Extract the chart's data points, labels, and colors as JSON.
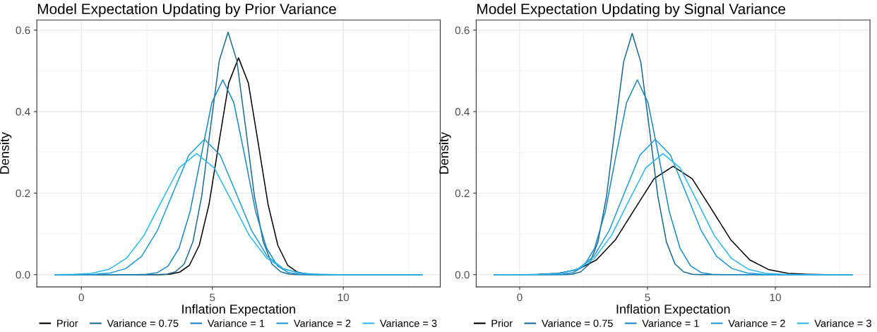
{
  "chart_data": [
    {
      "type": "line",
      "title": "Model Expectation Updating by Prior Variance",
      "xlabel": "Inflation Expectation",
      "ylabel": "Density",
      "xlim": [
        -1.7,
        13.7
      ],
      "ylim": [
        -0.03,
        0.625
      ],
      "xticks": [
        0,
        5,
        10
      ],
      "yticks": [
        {
          "value": 0,
          "label": "0.0"
        },
        {
          "value": 0.2,
          "label": "0.2"
        },
        {
          "value": 0.4,
          "label": "0.4"
        },
        {
          "value": 0.6,
          "label": "0.6"
        }
      ],
      "grid": true,
      "legend": "bottom",
      "marker": "none",
      "line_style": "solid",
      "series": [
        {
          "name": "Prior",
          "color": "#000000",
          "x": [
            -1,
            3,
            3.375,
            3.75,
            4.125,
            4.5,
            4.875,
            5.25,
            5.625,
            6,
            6.375,
            6.75,
            7.125,
            7.5,
            7.875,
            8.25,
            8.625,
            9,
            13
          ],
          "values": [
            0,
            0,
            0.001,
            0.006,
            0.023,
            0.072,
            0.173,
            0.323,
            0.47,
            0.532,
            0.47,
            0.323,
            0.173,
            0.072,
            0.023,
            0.006,
            0.001,
            0,
            0
          ]
        },
        {
          "name": "Variance = 0.75",
          "color": "#1b6a94",
          "x": [
            -1,
            2.92,
            3.255,
            3.59,
            3.925,
            4.26,
            4.595,
            4.93,
            5.265,
            5.6,
            5.935,
            6.27,
            6.605,
            6.94,
            7.275,
            7.61,
            7.945,
            8.28,
            13
          ],
          "values": [
            0,
            0,
            0.001,
            0.007,
            0.026,
            0.081,
            0.193,
            0.361,
            0.525,
            0.595,
            0.525,
            0.361,
            0.193,
            0.081,
            0.026,
            0.007,
            0.001,
            0,
            0
          ]
        },
        {
          "name": "Variance = 1",
          "color": "#1a87c4",
          "x": [
            -1,
            2.06,
            2.48,
            2.9,
            3.31,
            3.73,
            4.15,
            4.57,
            4.98,
            5.4,
            5.82,
            6.24,
            6.65,
            7.07,
            7.49,
            7.9,
            8.32,
            8.74,
            13
          ],
          "values": [
            0,
            0,
            0.001,
            0.005,
            0.021,
            0.065,
            0.155,
            0.29,
            0.422,
            0.478,
            0.422,
            0.29,
            0.155,
            0.065,
            0.021,
            0.005,
            0.001,
            0,
            0
          ]
        },
        {
          "name": "Variance = 2",
          "color": "#1f9ad6",
          "x": [
            -1,
            -0.1,
            0.5,
            1.1,
            1.7,
            2.3,
            2.9,
            3.5,
            4.1,
            4.7,
            5.3,
            5.9,
            6.5,
            7.1,
            7.7,
            8.3,
            8.9,
            9.5,
            13
          ],
          "values": [
            0,
            0,
            0.001,
            0.004,
            0.015,
            0.045,
            0.108,
            0.201,
            0.293,
            0.332,
            0.293,
            0.201,
            0.108,
            0.045,
            0.015,
            0.004,
            0.001,
            0,
            0
          ]
        },
        {
          "name": "Variance = 3",
          "color": "#2ab8f0",
          "x": [
            -1,
            -0.96,
            -0.29,
            0.38,
            1.05,
            1.72,
            2.39,
            3.06,
            3.73,
            4.4,
            5.07,
            5.74,
            6.41,
            7.08,
            7.75,
            8.42,
            9.09,
            9.76,
            13
          ],
          "values": [
            0,
            0,
            0.001,
            0.003,
            0.013,
            0.04,
            0.096,
            0.18,
            0.262,
            0.297,
            0.262,
            0.18,
            0.096,
            0.04,
            0.013,
            0.003,
            0.001,
            0,
            0
          ]
        }
      ]
    },
    {
      "type": "line",
      "title": "Model Expectation Updating by Signal Variance",
      "xlabel": "Inflation Expectation",
      "ylabel": "Density",
      "xlim": [
        -1.7,
        13.7
      ],
      "ylim": [
        -0.03,
        0.625
      ],
      "xticks": [
        0,
        5,
        10
      ],
      "yticks": [
        {
          "value": 0,
          "label": "0.0"
        },
        {
          "value": 0.2,
          "label": "0.2"
        },
        {
          "value": 0.4,
          "label": "0.4"
        },
        {
          "value": 0.6,
          "label": "0.6"
        }
      ],
      "grid": true,
      "legend": "bottom",
      "marker": "none",
      "line_style": "solid",
      "series": [
        {
          "name": "Prior",
          "color": "#000000",
          "x": [
            0.75,
            1.5,
            2.25,
            3,
            3.75,
            4.5,
            5.25,
            6,
            6.75,
            7.5,
            8.25,
            9,
            9.75,
            10.5,
            11.25,
            12,
            13
          ],
          "values": [
            0.001,
            0.003,
            0.012,
            0.036,
            0.086,
            0.161,
            0.235,
            0.266,
            0.235,
            0.161,
            0.086,
            0.036,
            0.012,
            0.003,
            0.001,
            0,
            0
          ]
        },
        {
          "name": "Variance = 0.75",
          "color": "#1b6a94",
          "x": [
            -1,
            1.72,
            2.055,
            2.39,
            2.725,
            3.06,
            3.395,
            3.73,
            4.065,
            4.4,
            4.735,
            5.07,
            5.405,
            5.74,
            6.075,
            6.41,
            6.745,
            7.08,
            13
          ],
          "values": [
            0,
            0,
            0.001,
            0.007,
            0.026,
            0.08,
            0.192,
            0.359,
            0.522,
            0.592,
            0.522,
            0.359,
            0.192,
            0.08,
            0.026,
            0.007,
            0.001,
            0,
            0
          ]
        },
        {
          "name": "Variance = 1",
          "color": "#1a87c4",
          "x": [
            -1,
            1.26,
            1.68,
            2.1,
            2.51,
            2.93,
            3.35,
            3.76,
            4.18,
            4.6,
            5.02,
            5.44,
            5.85,
            6.27,
            6.69,
            7.1,
            7.52,
            7.94,
            13
          ],
          "values": [
            0,
            0,
            0.001,
            0.005,
            0.021,
            0.065,
            0.155,
            0.29,
            0.422,
            0.478,
            0.422,
            0.29,
            0.155,
            0.065,
            0.021,
            0.005,
            0.001,
            0,
            0
          ]
        },
        {
          "name": "Variance = 2",
          "color": "#1f9ad6",
          "x": [
            -1,
            0.5,
            1.1,
            1.7,
            2.3,
            2.9,
            3.5,
            4.1,
            4.7,
            5.3,
            5.9,
            6.5,
            7.1,
            7.7,
            8.3,
            8.9,
            9.5,
            10.1,
            13
          ],
          "values": [
            0,
            0,
            0.001,
            0.004,
            0.015,
            0.045,
            0.108,
            0.201,
            0.293,
            0.332,
            0.293,
            0.201,
            0.108,
            0.045,
            0.015,
            0.004,
            0.001,
            0,
            0
          ]
        },
        {
          "name": "Variance = 3",
          "color": "#2ab8f0",
          "x": [
            -1,
            0.24,
            0.91,
            1.58,
            2.25,
            2.92,
            3.59,
            4.26,
            4.93,
            5.6,
            6.27,
            6.94,
            7.61,
            8.28,
            8.95,
            9.62,
            10.29,
            10.96,
            13
          ],
          "values": [
            0,
            0,
            0.001,
            0.003,
            0.013,
            0.04,
            0.096,
            0.18,
            0.262,
            0.297,
            0.262,
            0.18,
            0.096,
            0.04,
            0.013,
            0.003,
            0.001,
            0,
            0
          ]
        }
      ]
    }
  ]
}
